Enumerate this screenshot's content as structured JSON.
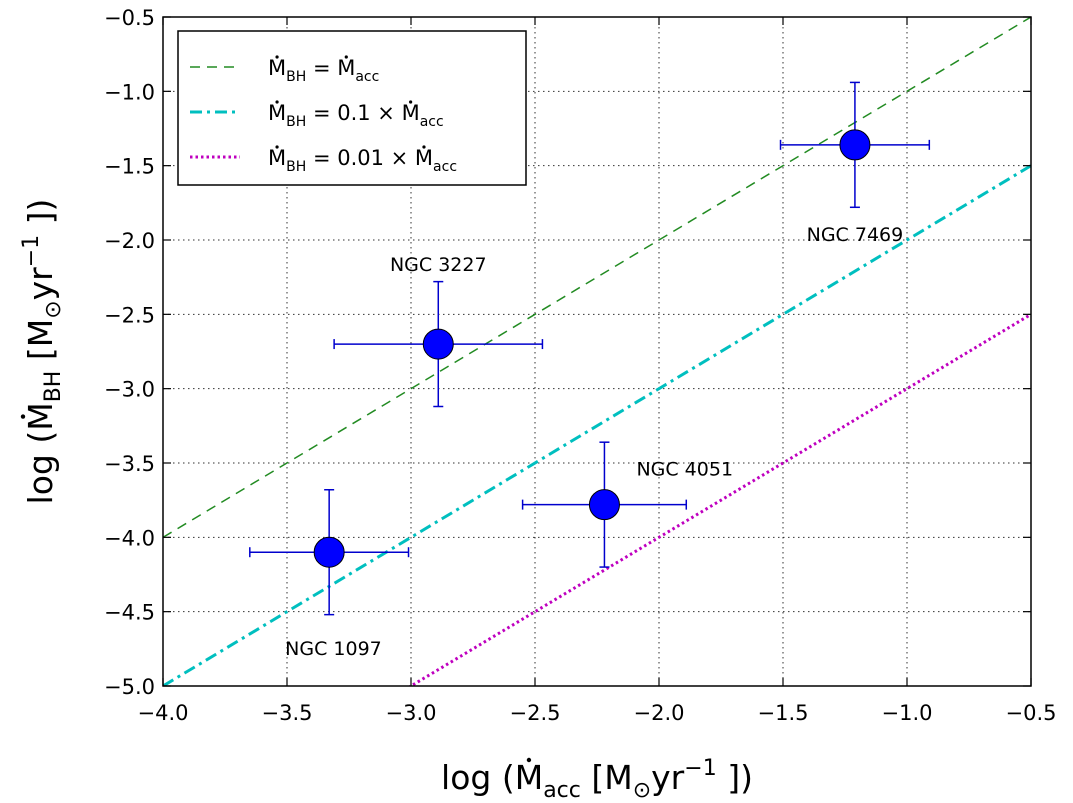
{
  "chart_data": {
    "type": "scatter",
    "xlabel": {
      "prefix": "log (",
      "main": "M",
      "dot": "˙",
      "sub": "acc",
      "bracket_open": " [M",
      "sun": "⊙",
      "unit": "yr",
      "exp": "−1",
      "suffix": " ])"
    },
    "ylabel": {
      "prefix": "log (",
      "main": "M",
      "dot": "˙",
      "sub": "BH",
      "bracket_open": " [M",
      "sun": "⊙",
      "unit": "yr",
      "exp": "−1",
      "suffix": " ])"
    },
    "xlim": [
      -4.0,
      -0.5
    ],
    "ylim": [
      -5.0,
      -0.5
    ],
    "xticks": [
      -4.0,
      -3.5,
      -3.0,
      -2.5,
      -2.0,
      -1.5,
      -1.0,
      -0.5
    ],
    "yticks": [
      -5.0,
      -4.5,
      -4.0,
      -3.5,
      -3.0,
      -2.5,
      -2.0,
      -1.5,
      -1.0,
      -0.5
    ],
    "grid": true,
    "legend_position": "top-left",
    "points": [
      {
        "label": "NGC 1097",
        "x": -3.33,
        "y": -4.1,
        "xerr": [
          0.32,
          0.32
        ],
        "yerr": [
          0.42,
          0.42
        ],
        "label_anchor": "below-right"
      },
      {
        "label": "NGC 3227",
        "x": -2.89,
        "y": -2.7,
        "xerr": [
          0.42,
          0.42
        ],
        "yerr": [
          0.42,
          0.42
        ],
        "label_anchor": "above"
      },
      {
        "label": "NGC 4051",
        "x": -2.22,
        "y": -3.78,
        "xerr": [
          0.33,
          0.33
        ],
        "yerr": [
          0.42,
          0.42
        ],
        "label_anchor": "above-right"
      },
      {
        "label": "NGC 7469",
        "x": -1.21,
        "y": -1.36,
        "xerr": [
          0.3,
          0.3
        ],
        "yerr": [
          0.42,
          0.42
        ],
        "label_anchor": "below"
      }
    ],
    "lines": [
      {
        "offset": 0,
        "style": "dashed",
        "color": "#228B22",
        "legend": {
          "lhs": "M",
          "lhs_sub": "BH",
          "mid": " = ",
          "factor": "",
          "rhs": "M",
          "rhs_sub": "acc"
        }
      },
      {
        "offset": -1,
        "style": "dashdot",
        "color": "#00BFBF",
        "legend": {
          "lhs": "M",
          "lhs_sub": "BH",
          "mid": " = 0.1 ",
          "factor": " × ",
          "rhs": "M",
          "rhs_sub": "acc"
        }
      },
      {
        "offset": -2,
        "style": "dotted",
        "color": "#BF00BF",
        "legend": {
          "lhs": "M",
          "lhs_sub": "BH",
          "mid": " = 0.01 ",
          "factor": " × ",
          "rhs": "M",
          "rhs_sub": "acc"
        }
      }
    ],
    "marker_color": "#0000FF",
    "errorbar_color": "#0000CD"
  }
}
